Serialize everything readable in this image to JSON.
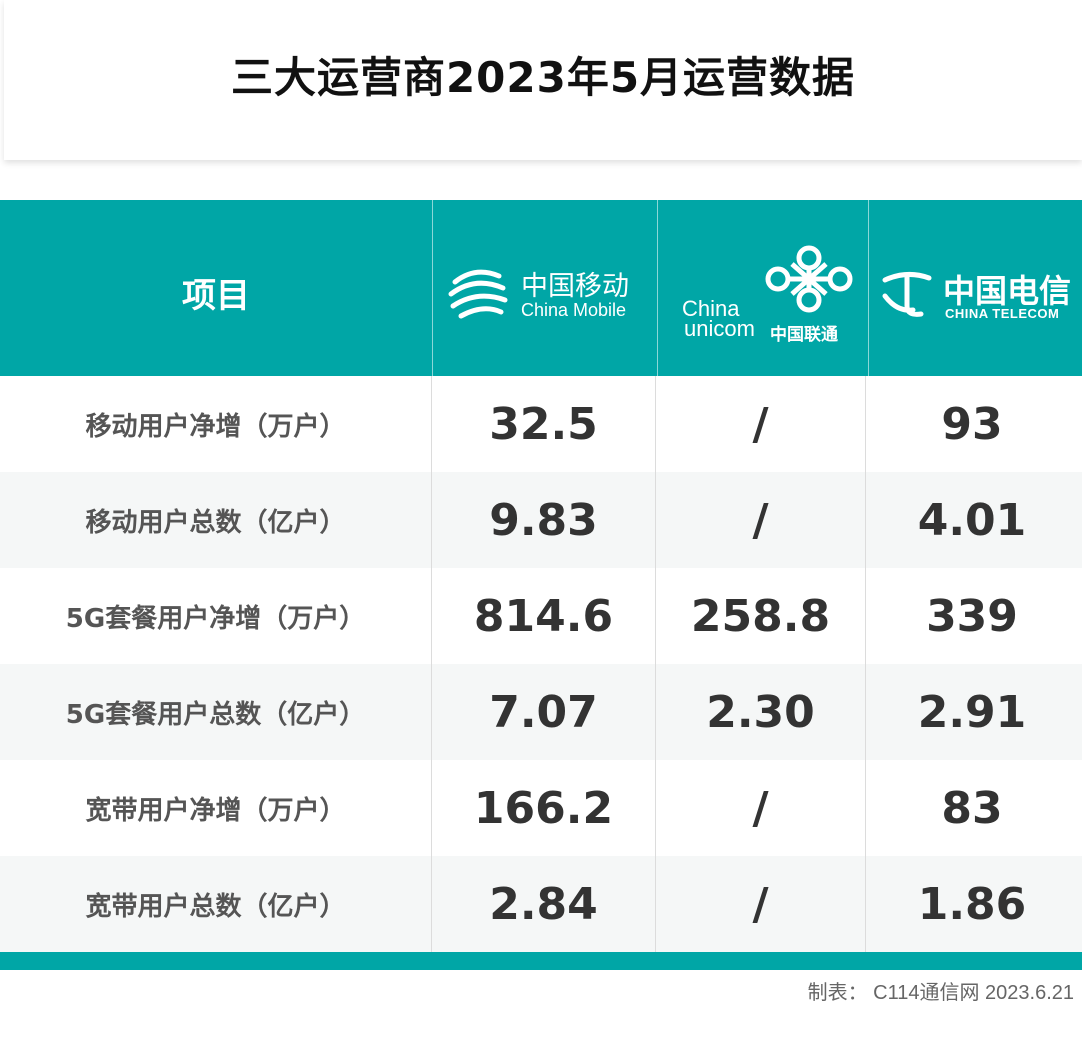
{
  "title": "三大运营商2023年5月运营数据",
  "header": {
    "item_label": "项目",
    "cmcc": {
      "cn": "中国移动",
      "en": "China Mobile"
    },
    "unicom": {
      "en1": "China",
      "en2": "unicom",
      "cn": "中国联通"
    },
    "telecom": {
      "cn": "中国电信",
      "en": "CHINA TELECOM"
    }
  },
  "rows": [
    {
      "label": "移动用户净增（万户）",
      "cmcc": "32.5",
      "unicom": "/",
      "telecom": "93"
    },
    {
      "label": "移动用户总数（亿户）",
      "cmcc": "9.83",
      "unicom": "/",
      "telecom": "4.01"
    },
    {
      "label": "5G套餐用户净增（万户）",
      "cmcc": "814.6",
      "unicom": "258.8",
      "telecom": "339"
    },
    {
      "label": "5G套餐用户总数（亿户）",
      "cmcc": "7.07",
      "unicom": "2.30",
      "telecom": "2.91"
    },
    {
      "label": "宽带用户净增（万户）",
      "cmcc": "166.2",
      "unicom": "/",
      "telecom": "83"
    },
    {
      "label": "宽带用户总数（亿户）",
      "cmcc": "2.84",
      "unicom": "/",
      "telecom": "1.86"
    }
  ],
  "footer": "制表： C114通信网 2023.6.21",
  "colors": {
    "accent": "#00a6a6",
    "text": "#333333"
  }
}
